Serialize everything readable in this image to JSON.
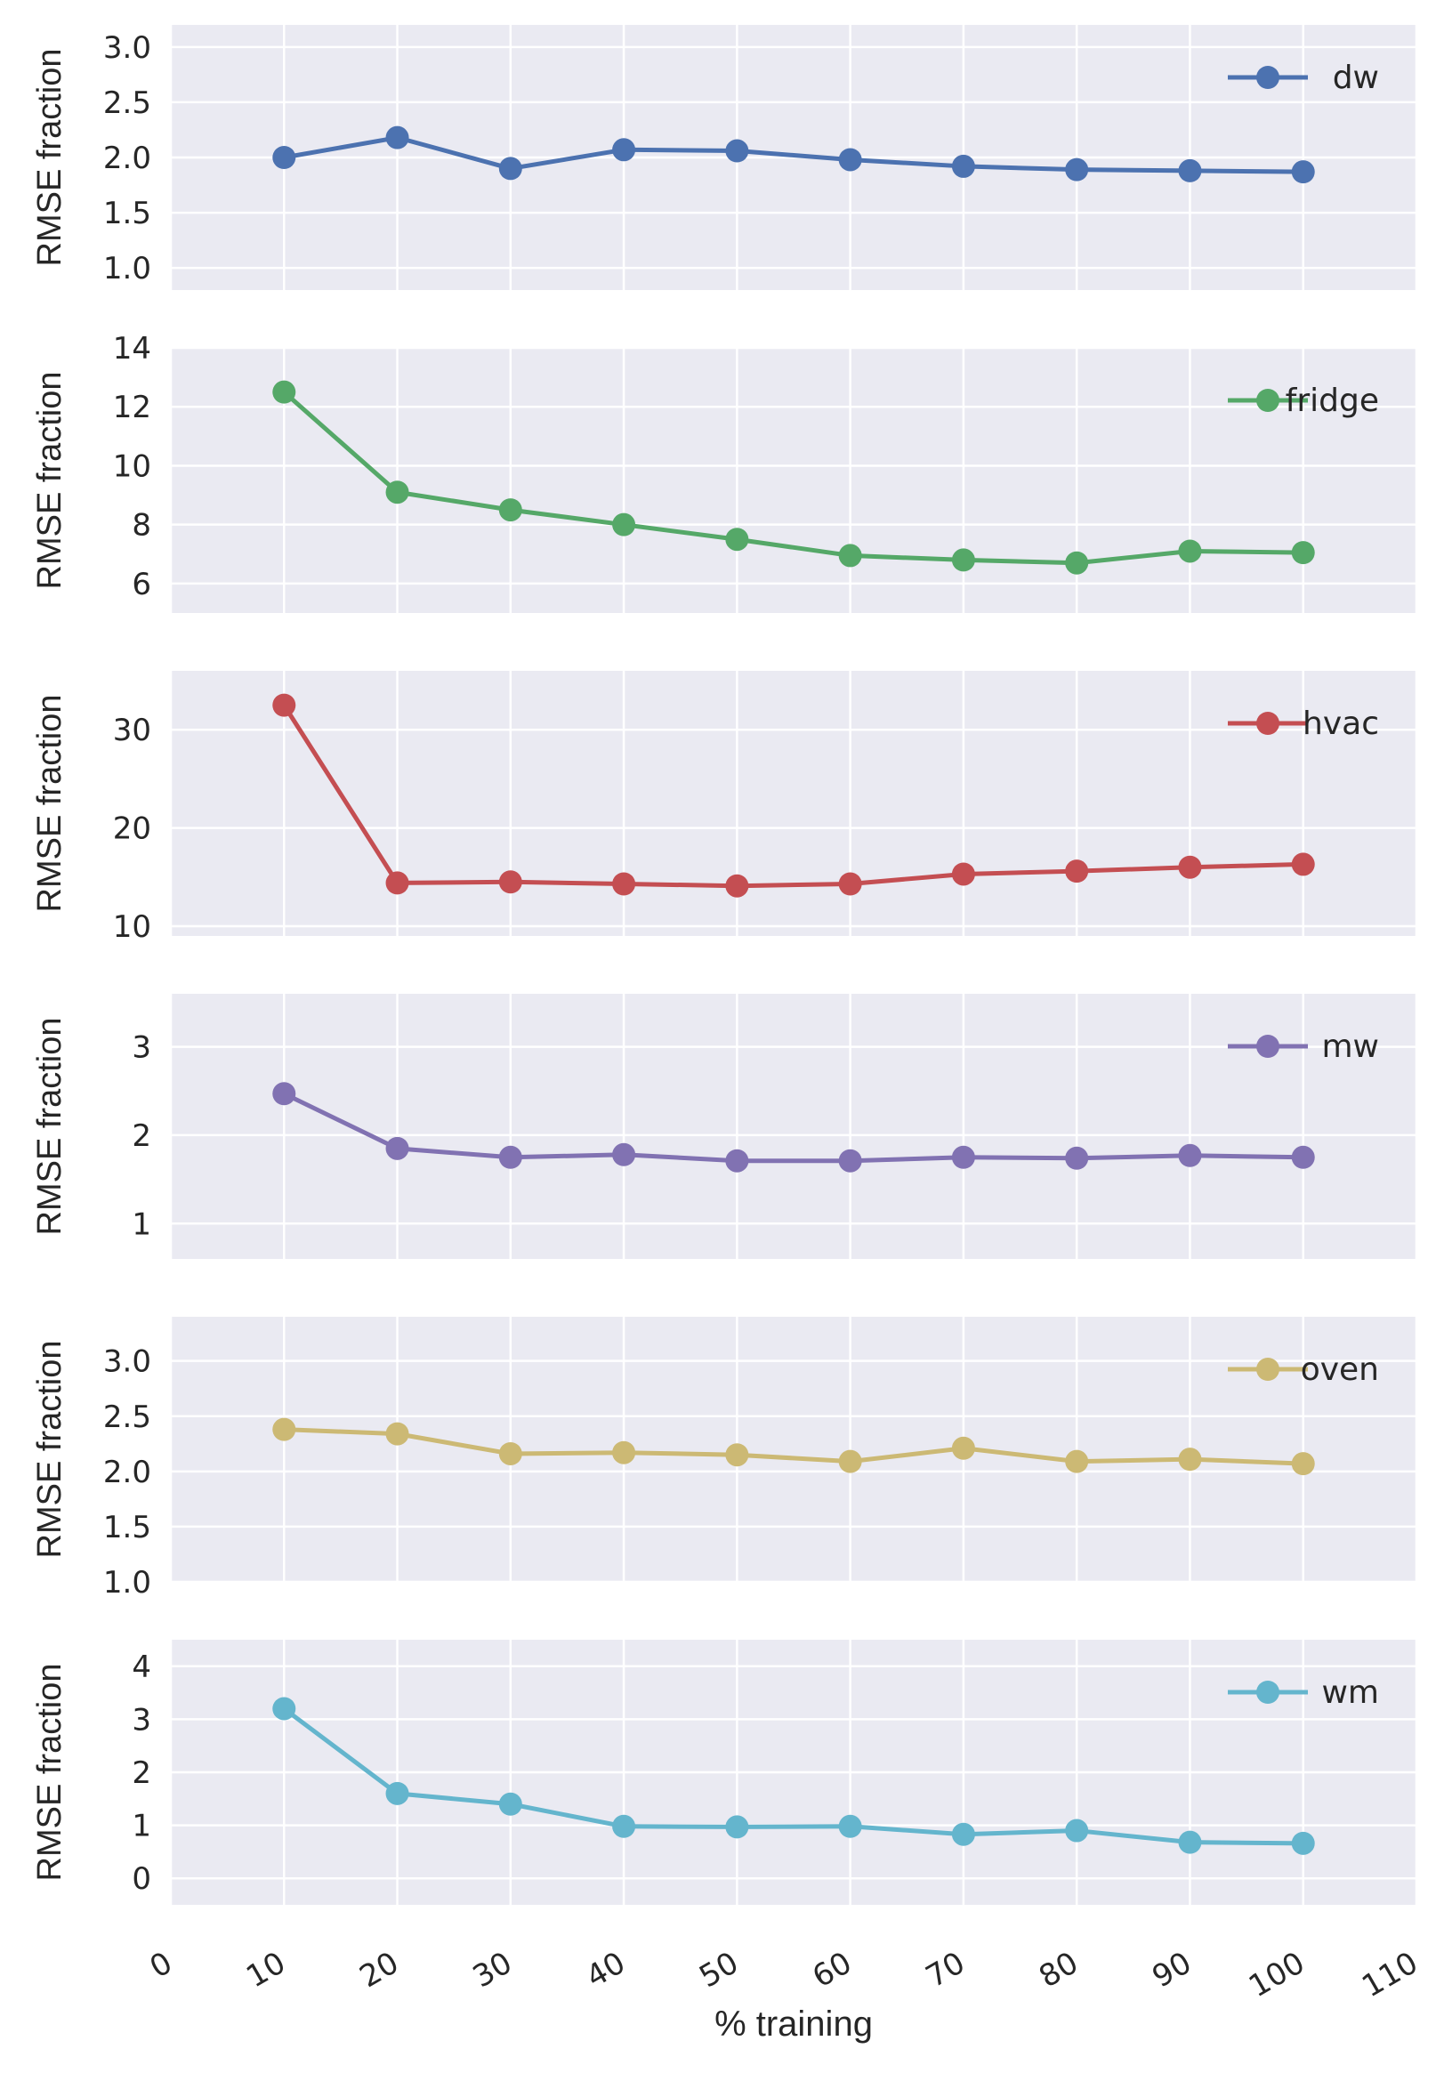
{
  "chart_data": {
    "type": "line",
    "xlabel": "% training",
    "x_ticks": [
      0,
      10,
      20,
      30,
      40,
      50,
      60,
      70,
      80,
      90,
      100,
      110
    ],
    "xlim": [
      0,
      110
    ],
    "x": [
      10,
      20,
      30,
      40,
      50,
      60,
      70,
      80,
      90,
      100
    ],
    "grid": true,
    "legend_position": "top-right",
    "subplots": [
      {
        "ylabel": "RMSE fraction",
        "ylim": [
          0.8,
          3.2
        ],
        "y_ticks": [
          1.0,
          1.5,
          2.0,
          2.5,
          3.0
        ],
        "tick_decimals": 1,
        "series": [
          {
            "name": "dw",
            "color": "#4C72B0",
            "values": [
              2.0,
              2.18,
              1.9,
              2.07,
              2.06,
              1.98,
              1.92,
              1.89,
              1.88,
              1.87
            ]
          }
        ]
      },
      {
        "ylabel": "RMSE fraction",
        "ylim": [
          5,
          14
        ],
        "y_ticks": [
          6,
          8,
          10,
          12,
          14
        ],
        "tick_decimals": 0,
        "series": [
          {
            "name": "fridge",
            "color": "#55A868",
            "values": [
              12.5,
              9.1,
              8.5,
              8.0,
              7.5,
              6.95,
              6.8,
              6.7,
              7.1,
              7.05
            ]
          }
        ]
      },
      {
        "ylabel": "RMSE fraction",
        "ylim": [
          9,
          36
        ],
        "y_ticks": [
          10,
          20,
          30
        ],
        "tick_decimals": 0,
        "series": [
          {
            "name": "hvac",
            "color": "#C44E52",
            "values": [
              32.5,
              14.4,
              14.5,
              14.3,
              14.1,
              14.3,
              15.3,
              15.6,
              16.0,
              16.3
            ]
          }
        ]
      },
      {
        "ylabel": "RMSE fraction",
        "ylim": [
          0.6,
          3.6
        ],
        "y_ticks": [
          1,
          2,
          3
        ],
        "tick_decimals": 0,
        "series": [
          {
            "name": "mw",
            "color": "#8172B2",
            "values": [
              2.47,
              1.85,
              1.75,
              1.78,
              1.71,
              1.71,
              1.75,
              1.74,
              1.77,
              1.75
            ]
          }
        ]
      },
      {
        "ylabel": "RMSE fraction",
        "ylim": [
          1.0,
          3.4
        ],
        "y_ticks": [
          1.0,
          1.5,
          2.0,
          2.5,
          3.0
        ],
        "tick_decimals": 1,
        "series": [
          {
            "name": "oven",
            "color": "#CCB974",
            "values": [
              2.38,
              2.34,
              2.16,
              2.17,
              2.15,
              2.09,
              2.21,
              2.09,
              2.11,
              2.07
            ]
          }
        ]
      },
      {
        "ylabel": "RMSE fraction",
        "ylim": [
          -0.5,
          4.5
        ],
        "y_ticks": [
          0,
          1,
          2,
          3,
          4
        ],
        "tick_decimals": 0,
        "series": [
          {
            "name": "wm",
            "color": "#64B5CD",
            "values": [
              3.2,
              1.6,
              1.4,
              0.98,
              0.97,
              0.98,
              0.83,
              0.9,
              0.68,
              0.66
            ]
          }
        ]
      }
    ]
  }
}
